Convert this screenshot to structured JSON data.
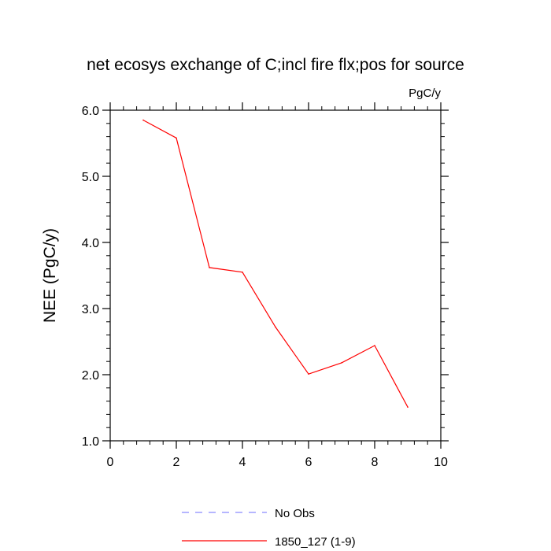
{
  "chart_data": {
    "type": "line",
    "title": "net ecosys exchange of C;incl fire flx;pos for source",
    "units_label": "PgC/y",
    "ylabel": "NEE  (PgC/y)",
    "xlabel": "",
    "xlim": [
      0,
      10
    ],
    "ylim": [
      1.0,
      6.0
    ],
    "x_ticks": [
      0,
      2,
      4,
      6,
      8,
      10
    ],
    "x_tick_labels": [
      "0",
      "2",
      "4",
      "6",
      "8",
      "10"
    ],
    "y_ticks": [
      1.0,
      2.0,
      3.0,
      4.0,
      5.0,
      6.0
    ],
    "y_tick_labels": [
      "1.0",
      "2.0",
      "3.0",
      "4.0",
      "5.0",
      "6.0"
    ],
    "grid": false,
    "legend_position": "bottom-center",
    "legend": [
      {
        "label": "No Obs",
        "color": "#8a8aff",
        "style": "dashed"
      },
      {
        "label": "1850_127 (1-9)",
        "color": "#ff0000",
        "style": "solid"
      }
    ],
    "series": [
      {
        "name": "1850_127 (1-9)",
        "color": "#ff0000",
        "x": [
          1,
          2,
          3,
          4,
          5,
          6,
          7,
          8,
          9
        ],
        "values": [
          5.85,
          5.58,
          3.62,
          3.55,
          2.72,
          2.01,
          2.18,
          2.44,
          1.51
        ]
      }
    ]
  }
}
